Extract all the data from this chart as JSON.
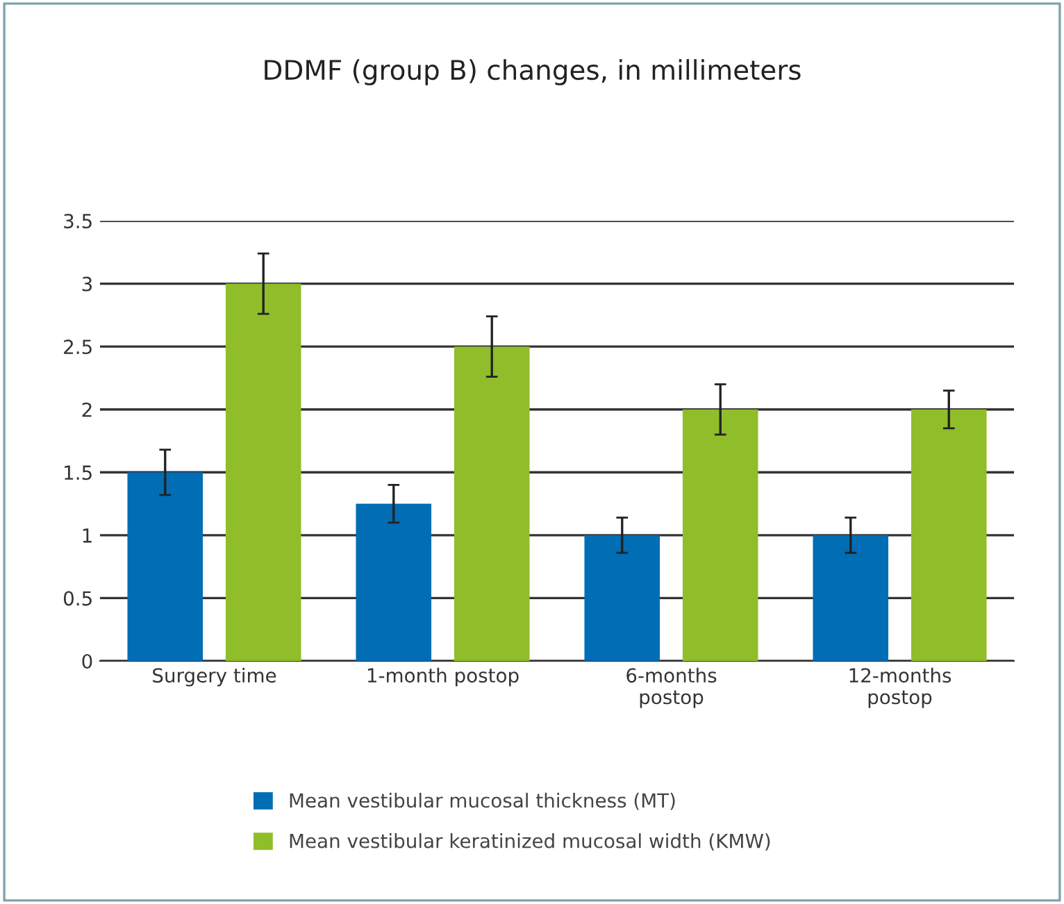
{
  "chart_data": {
    "type": "bar",
    "title": "DDMF (group B) changes, in millimeters",
    "categories": [
      "Surgery time",
      "1-month postop",
      "6-months\npostop",
      "12-months\npostop"
    ],
    "series": [
      {
        "name": "Mean vestibular mucosal thickness (MT)",
        "color": "#006db4",
        "values": [
          1.5,
          1.25,
          1.0,
          1.0
        ],
        "errors": [
          0.18,
          0.15,
          0.14,
          0.14
        ]
      },
      {
        "name": "Mean vestibular keratinized mucosal width (KMW)",
        "color": "#8fbe2a",
        "values": [
          3.0,
          2.5,
          2.0,
          2.0
        ],
        "errors": [
          0.24,
          0.24,
          0.2,
          0.15
        ]
      }
    ],
    "ylim": [
      0,
      3.5
    ],
    "yticks": [
      0,
      0.5,
      1,
      1.5,
      2,
      2.5,
      3,
      3.5
    ],
    "grid": "y",
    "legend": "bottom"
  }
}
